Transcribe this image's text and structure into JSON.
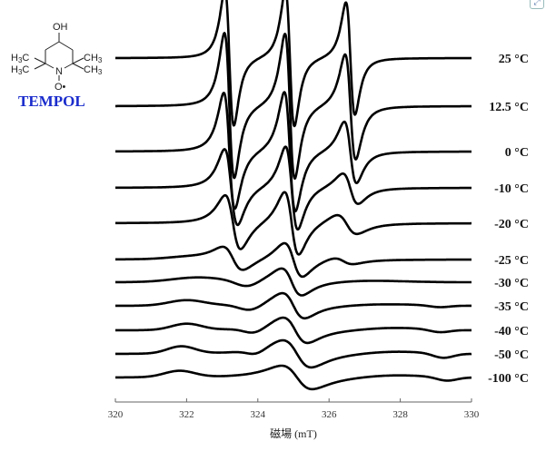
{
  "molecule": {
    "name": "TEMPOL",
    "oh": "OH",
    "h3c_top": "H3C",
    "h3c_bottom": "H3C",
    "ch3_top": "CH3",
    "ch3_bottom": "CH3",
    "n": "N",
    "o_radical": "O•",
    "name_color": "#1a2ccc"
  },
  "chart_data": {
    "type": "line",
    "title": "",
    "xlabel": "磁場 (mT)",
    "ylabel": "",
    "xlim": [
      320,
      330
    ],
    "xticks": [
      "320",
      "322",
      "324",
      "326",
      "328",
      "330"
    ],
    "grid": false,
    "line_color": "#000000",
    "note": "stacked EPR first-derivative spectra, intensities in arbitrary units",
    "series": [
      {
        "name": "25 °C",
        "lines": [
          {
            "t": "d",
            "c": 323.2,
            "w": 0.22,
            "a": 75
          },
          {
            "t": "d",
            "c": 324.9,
            "w": 0.22,
            "a": 75
          },
          {
            "t": "d",
            "c": 326.6,
            "w": 0.22,
            "a": 62
          }
        ]
      },
      {
        "name": "12.5 °C",
        "lines": [
          {
            "t": "d",
            "c": 323.2,
            "w": 0.24,
            "a": 80
          },
          {
            "t": "d",
            "c": 324.9,
            "w": 0.24,
            "a": 80
          },
          {
            "t": "d",
            "c": 326.6,
            "w": 0.26,
            "a": 58
          }
        ]
      },
      {
        "name": "0 °C",
        "lines": [
          {
            "t": "d",
            "c": 323.2,
            "w": 0.27,
            "a": 64
          },
          {
            "t": "d",
            "c": 324.9,
            "w": 0.27,
            "a": 66
          },
          {
            "t": "d",
            "c": 326.6,
            "w": 0.3,
            "a": 34
          }
        ]
      },
      {
        "name": "-10 °C",
        "lines": [
          {
            "t": "d",
            "c": 323.25,
            "w": 0.32,
            "a": 42
          },
          {
            "t": "d",
            "c": 324.95,
            "w": 0.3,
            "a": 46
          },
          {
            "t": "d",
            "c": 326.6,
            "w": 0.38,
            "a": 17
          }
        ]
      },
      {
        "name": "-20 °C",
        "lines": [
          {
            "t": "d",
            "c": 323.3,
            "w": 0.38,
            "a": 30
          },
          {
            "t": "d",
            "c": 324.95,
            "w": 0.35,
            "a": 35
          },
          {
            "t": "d",
            "c": 326.5,
            "w": 0.5,
            "a": 11
          }
        ]
      },
      {
        "name": "-25 °C",
        "lines": [
          {
            "t": "d",
            "c": 323.3,
            "w": 0.5,
            "a": 13
          },
          {
            "t": "d",
            "c": 325.0,
            "w": 0.45,
            "a": 19
          },
          {
            "t": "d",
            "c": 326.4,
            "w": 0.5,
            "a": 4
          },
          {
            "t": "a",
            "c": 322.0,
            "w": 0.8,
            "a": 2
          }
        ]
      },
      {
        "name": "-30 °C",
        "lines": [
          {
            "t": "a",
            "c": 322.3,
            "w": 1.0,
            "a": 5
          },
          {
            "t": "a",
            "c": 323.7,
            "w": 0.45,
            "a": -7
          },
          {
            "t": "d",
            "c": 324.95,
            "w": 0.5,
            "a": 15
          },
          {
            "t": "a",
            "c": 327.0,
            "w": 1.5,
            "a": 2
          }
        ]
      },
      {
        "name": "-35 °C",
        "lines": [
          {
            "t": "a",
            "c": 322.0,
            "w": 0.7,
            "a": 6
          },
          {
            "t": "a",
            "c": 323.8,
            "w": 0.45,
            "a": -7
          },
          {
            "t": "d",
            "c": 325.0,
            "w": 0.55,
            "a": 14
          },
          {
            "t": "a",
            "c": 327.5,
            "w": 1.5,
            "a": 2
          },
          {
            "t": "a",
            "c": 329.1,
            "w": 0.4,
            "a": -2
          }
        ]
      },
      {
        "name": "-40 °C",
        "lines": [
          {
            "t": "a",
            "c": 322.0,
            "w": 0.6,
            "a": 7
          },
          {
            "t": "a",
            "c": 323.9,
            "w": 0.4,
            "a": -6
          },
          {
            "t": "d",
            "c": 325.05,
            "w": 0.6,
            "a": 14
          },
          {
            "t": "a",
            "c": 327.8,
            "w": 1.3,
            "a": 3
          },
          {
            "t": "a",
            "c": 329.1,
            "w": 0.4,
            "a": -3
          }
        ]
      },
      {
        "name": "-50 °C",
        "lines": [
          {
            "t": "a",
            "c": 321.85,
            "w": 0.55,
            "a": 8
          },
          {
            "t": "a",
            "c": 323.95,
            "w": 0.35,
            "a": -5
          },
          {
            "t": "d",
            "c": 325.1,
            "w": 0.7,
            "a": 15
          },
          {
            "t": "a",
            "c": 327.8,
            "w": 1.3,
            "a": 3
          },
          {
            "t": "a",
            "c": 329.2,
            "w": 0.4,
            "a": -5
          }
        ]
      },
      {
        "name": "-100 °C",
        "lines": [
          {
            "t": "a",
            "c": 321.8,
            "w": 0.6,
            "a": 7
          },
          {
            "t": "d",
            "c": 325.1,
            "w": 0.75,
            "a": 13
          },
          {
            "t": "a",
            "c": 327.8,
            "w": 1.3,
            "a": 3
          },
          {
            "t": "a",
            "c": 329.3,
            "w": 0.4,
            "a": -4
          }
        ]
      }
    ]
  }
}
